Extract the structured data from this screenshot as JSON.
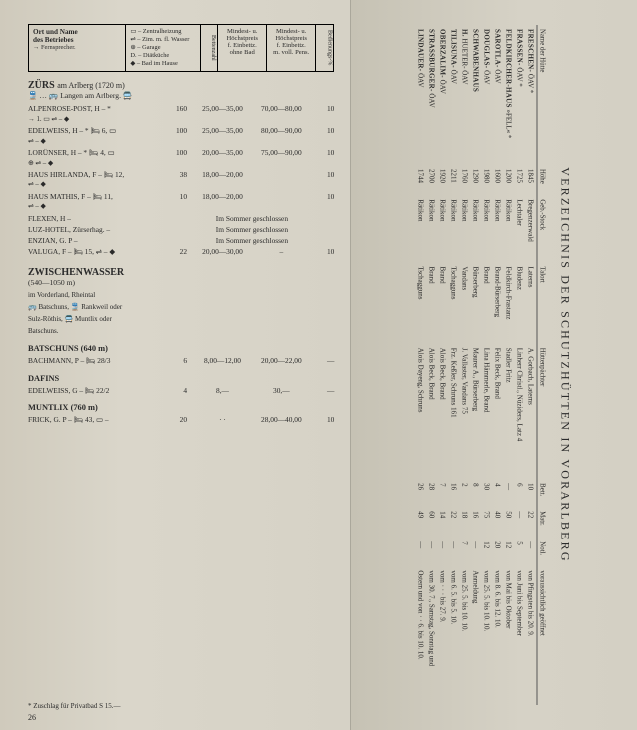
{
  "header": {
    "col1_l1": "Ort und Name",
    "col1_l2": "des Betriebes",
    "col1_l3": "→ Fernsprecher.",
    "legend_l1": "▭ – Zentralheizung",
    "legend_l2": "⇌ – Zim. m. fl. Wasser",
    "legend_l3": "⊕ – Garage",
    "legend_l4": "D. – Diätküche",
    "legend_l5": "◆ – Bad im Hause",
    "col3": "Bettenzahl",
    "col4_l1": "Mindest- u.",
    "col4_l2": "Höchstpreis",
    "col4_l3": "f. Einbettz.",
    "col4_l4": "ohne Bad",
    "col5_l1": "Mindest- u.",
    "col5_l2": "Höchstpreis",
    "col5_l3": "f. Einbettz.",
    "col5_l4": "m. voll. Pens.",
    "col6": "Bedienungs-%"
  },
  "zurs": {
    "title": "ZÜRS",
    "title_suffix": "am Arlberg (1720 m)",
    "sub": "🚆 … 🚌 Langen am Arlberg. 🚍",
    "rows": [
      {
        "name": "ALPENROSE-POST, H –  *",
        "sym": "→ 1. ▭ ⇌ – ◆",
        "beds": "160",
        "p1": "25,00—35,00",
        "p2": "70,00—80,00",
        "last": "10"
      },
      {
        "name": "EDELWEISS, H – * 🛏 6, ▭",
        "sym": "⇌ –  ◆",
        "beds": "100",
        "p1": "25,00—35,00",
        "p2": "80,00—90,00",
        "last": "10"
      },
      {
        "name": "LORÜNSER, H –  *  🛏 4, ▭",
        "sym": "⊕ ⇌ – ◆",
        "beds": "100",
        "p1": "20,00—35,00",
        "p2": "75,00—90,00",
        "last": "10"
      },
      {
        "name": "HAUS HIRLANDA, F – 🛏 12,",
        "sym": "⇌ – ◆",
        "beds": "38",
        "p1": "18,00—20,00",
        "p2": "",
        "last": "10"
      },
      {
        "name": "HAUS MATHIS, F – 🛏 11,",
        "sym": "⇌ – ◆",
        "beds": "10",
        "p1": "18,00—20,00",
        "p2": "",
        "last": "10"
      },
      {
        "name": "FLEXEN, H –",
        "beds": "",
        "p1": "Im Sommer geschlossen",
        "p2": "",
        "last": ""
      },
      {
        "name": "LUZ-HOTEL, Zürserhag. –",
        "beds": "",
        "p1": "Im Sommer geschlossen",
        "p2": "",
        "last": ""
      },
      {
        "name": "ENZIAN, G. P –",
        "beds": "",
        "p1": "Im Sommer geschlossen",
        "p2": "",
        "last": ""
      },
      {
        "name": "VALUGA, F – 🛏 15, ⇌ – ◆",
        "beds": "22",
        "p1": "20,00—30,00",
        "p2": "–",
        "last": "10"
      }
    ]
  },
  "zwischen": {
    "title": "ZWISCHENWASSER",
    "alt": "(540—1050 m)",
    "loc1": "im Vorderland, Rheintal",
    "loc2": "🚌 Batschuns,   🚆 Rankweil oder",
    "loc3": "Sulz-Röthis,  🚍 Muntlix oder",
    "loc4": "Batschuns.",
    "groups": [
      {
        "head": "BATSCHUNS (640 m)",
        "rows": [
          {
            "name": "BACHMANN, P – 🛏 28/3",
            "beds": "6",
            "p1": "8,00—12,00",
            "p2": "20,00—22,00",
            "last": "—"
          }
        ]
      },
      {
        "head": "DAFINS",
        "rows": [
          {
            "name": "EDELWEISS, G – 🛏 22/2",
            "beds": "4",
            "p1": "8,—",
            "p2": "30,—",
            "last": "—"
          }
        ]
      },
      {
        "head": "MUNTLIX (760 m)",
        "rows": [
          {
            "name": "FRICK, G. P – 🛏 43, ▭ –",
            "beds": "20",
            "p1": "· ·",
            "p2": "28,00—40,00",
            "last": "10"
          }
        ]
      }
    ]
  },
  "footnote": "*  Zuschlag für Privatbad S 15.—",
  "pagenum": "26",
  "right": {
    "title": "VERZEICHNIS DER SCHUTZHÜTTEN IN VORARLBERG",
    "cols": [
      "Name der Hütte",
      "Höhe",
      "Geb.-Stock",
      "Talort",
      "Hüttenpächter",
      "Bett.",
      "Matr.",
      "Notl.",
      "voraussichtlich geöffnet"
    ],
    "rows": [
      [
        "FRESCHEN- ÖAV *",
        "1845",
        "Bregenzerwald",
        "Laterns",
        "A. Gorbach, Laterns",
        "10",
        "22",
        "—",
        "von Pfingsten bis 20. 9."
      ],
      [
        "FRASSEN- ÖAV *",
        "1725",
        "Lechtaler",
        "Bludenz",
        "Linherr Christl., Nüziders, Latz 4",
        "6",
        "—",
        "5",
        "von Juni bis September"
      ],
      [
        "FELDKIRCHER-HAUS »FELL« *",
        "1200",
        "Rätikon",
        "Feldkirch-Frastanz",
        "Stadler Fritz",
        "—",
        "50",
        "12",
        "von Mai bis Oktober"
      ],
      [
        "SAROTLA- ÖAV",
        "1600",
        "Rätikon",
        "Brand-Bürserberg",
        "Felix Beck, Brand",
        "4",
        "40",
        "20",
        "vom 8. 6. bis 12. 10."
      ],
      [
        "DOUGLAS- ÖAV",
        "1980",
        "Rätikon",
        "Brand",
        "Lina Hämmerle, Brand",
        "30",
        "75",
        "12",
        "vom 25. 5. bis 10. 10."
      ],
      [
        "SCHWABENHAUS",
        "1290",
        "Rätikon",
        "Bürserberg",
        "Maurer A., Bürserberg",
        "8",
        "16",
        "—",
        "Anmeldung"
      ],
      [
        "H. HUETER- ÖAV",
        "1760",
        "Rätikon",
        "Vandans",
        "J. Vallaster, Vandans 75",
        "2",
        "18",
        "7",
        "vom 25. 5. bis 10. 10."
      ],
      [
        "TILISUNA- ÖAV",
        "2211",
        "Rätikon",
        "Tschagguns",
        "Frz. Keßler, Schruns 161",
        "16",
        "22",
        "—",
        "vom 6. 5. bis 5. 10."
      ],
      [
        "OBERZALIM- ÖAV",
        "1920",
        "Rätikon",
        "Brand",
        "Alois Beck, Brand",
        "7",
        "14",
        "—",
        "vom · · · bis 27. 9."
      ],
      [
        "STRASSBURGER- ÖAV",
        "2700",
        "Rätikon",
        "Brand",
        "Alois Beck, Brand",
        "28",
        "60",
        "—",
        "vom 30. 7., Samstag, Sonntag und"
      ],
      [
        "LINDAUER- ÖAV",
        "1744",
        "Rätikon",
        "Tschagguns",
        "Alois Dayeng, Schruns",
        "26",
        "49",
        "—",
        "Ostern und von · · 6. bis 10. 10."
      ]
    ]
  }
}
